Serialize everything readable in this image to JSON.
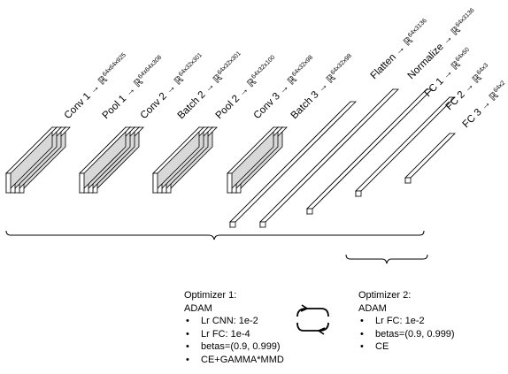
{
  "layer_labels": [
    {
      "name": "Conv 1",
      "dims": "64x64x925"
    },
    {
      "name": "Pool 1",
      "dims": "64x64x308"
    },
    {
      "name": "Conv 2",
      "dims": "64x32x301"
    },
    {
      "name": "Batch 2",
      "dims": "64x32x301"
    },
    {
      "name": "Pool 2",
      "dims": "64x32x100"
    },
    {
      "name": "Conv 3",
      "dims": "64x32x98"
    },
    {
      "name": "Batch 3",
      "dims": "64x32x98"
    },
    {
      "name": "Flatten",
      "dims": "64x3136"
    },
    {
      "name": "Normalize",
      "dims": "64x3136"
    },
    {
      "name": "FC 1",
      "dims": "64x50"
    },
    {
      "name": "FC 2",
      "dims": "64x3"
    },
    {
      "name": "FC 3",
      "dims": "64x2"
    }
  ],
  "arrow_symbol": "→",
  "real_symbol": "ℝ",
  "optimizer1": {
    "title": "Optimizer 1:",
    "name": "ADAM",
    "items": [
      "Lr CNN: 1e-2",
      "Lr FC: 1e-4",
      "betas=(0.9, 0.999)",
      "CE+GAMMA*MMD"
    ]
  },
  "optimizer2": {
    "title": "Optimizer 2:",
    "name": "ADAM",
    "items": [
      "Lr FC: 1e-2",
      "betas=(0.9, 0.999)",
      "CE"
    ]
  },
  "icons": {
    "cycle": "cycle-arrows-icon"
  },
  "colors": {
    "block_face": "#d8d8d8",
    "block_side": "#ffffff",
    "stroke": "#000000"
  }
}
